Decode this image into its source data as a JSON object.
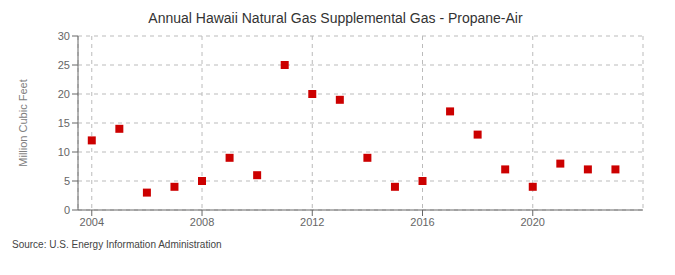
{
  "chart_data": {
    "type": "scatter",
    "title": "Annual Hawaii Natural Gas Supplemental Gas - Propane-Air",
    "ylabel": "Million Cubic Feet",
    "annotations": [
      "Source: U.S. Energy Information Administration"
    ],
    "x": [
      2004,
      2005,
      2006,
      2007,
      2008,
      2009,
      2010,
      2011,
      2012,
      2013,
      2014,
      2015,
      2016,
      2017,
      2018,
      2019,
      2020,
      2021,
      2022,
      2023
    ],
    "values": [
      12.0,
      14.0,
      3.0,
      4.0,
      5.0,
      9.0,
      6.0,
      25.0,
      20.0,
      19.0,
      9.0,
      4.0,
      5.0,
      17.0,
      13.0,
      7.0,
      4.0,
      8.0,
      7.0,
      7.0
    ],
    "color": "#cc0000",
    "marker": "square",
    "xlim": [
      2003.5,
      2024
    ],
    "ylim": [
      0,
      30
    ],
    "xticks": [
      2004,
      2008,
      2012,
      2016,
      2020
    ],
    "yticks": [
      0,
      5,
      10,
      15,
      20,
      25,
      30
    ],
    "grid": true
  }
}
